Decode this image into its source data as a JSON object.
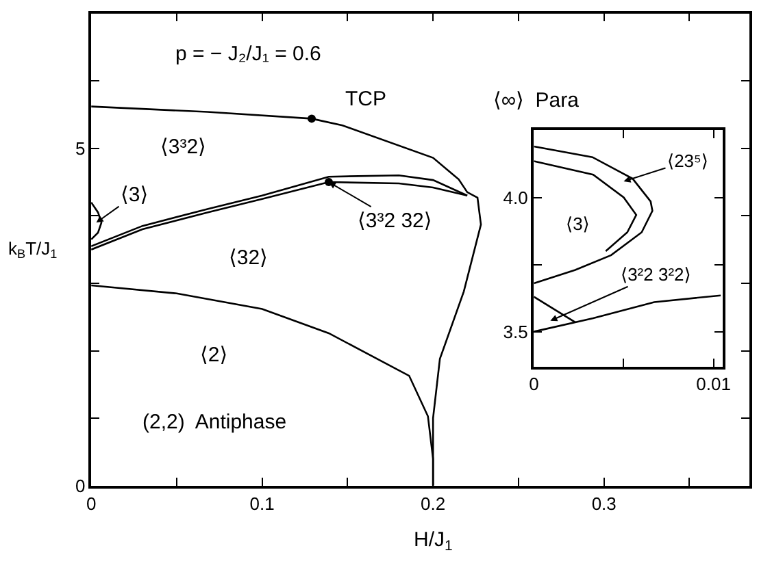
{
  "chart_data": [
    {
      "type": "line",
      "xlabel": "H/J$_{1}$",
      "ylabel": "k$_{B}$T/J$_{1}$",
      "xlim": [
        0,
        0.385
      ],
      "ylim": [
        0,
        7
      ],
      "xticks": [
        0,
        {
          "value": 0.05,
          "label": null
        },
        0.1,
        {
          "value": 0.15,
          "label": null
        },
        0.2,
        {
          "value": 0.25,
          "label": null
        },
        0.3,
        {
          "value": 0.35,
          "label": null
        }
      ],
      "yticks": [
        0,
        {
          "value": 1,
          "label": null
        },
        {
          "value": 2,
          "label": null
        },
        {
          "value": 3,
          "label": null
        },
        {
          "value": 4,
          "label": null
        },
        5,
        {
          "value": 6,
          "label": null
        }
      ],
      "grid": false,
      "marker": "none",
      "line_style": "solid",
      "series": [
        {
          "color": "#000000",
          "x": [
            0,
            0.068,
            0.129,
            0.147,
            0.2,
            0.215,
            0.22,
            0.226,
            0.228,
            0.218,
            0.204,
            0.2,
            0.2
          ],
          "values": [
            5.62,
            5.54,
            5.44,
            5.34,
            4.86,
            4.54,
            4.35,
            4.27,
            3.87,
            2.88,
            1.88,
            1.0,
            0
          ]
        },
        {
          "color": "#000000",
          "x": [
            0,
            0.03,
            0.068,
            0.1,
            0.139,
            0.18,
            0.2,
            0.22
          ],
          "values": [
            3.55,
            3.85,
            4.1,
            4.3,
            4.58,
            4.6,
            4.53,
            4.3
          ]
        },
        {
          "color": "#000000",
          "x": [
            0,
            0.03,
            0.068,
            0.1,
            0.139,
            0.18,
            0.2,
            0.22
          ],
          "values": [
            3.5,
            3.8,
            4.05,
            4.25,
            4.5,
            4.48,
            4.42,
            4.3
          ]
        },
        {
          "color": "#000000",
          "x": [
            0,
            0.05,
            0.1,
            0.139,
            0.186,
            0.197,
            0.2,
            0.2
          ],
          "values": [
            2.97,
            2.85,
            2.62,
            2.26,
            1.63,
            1.03,
            0.4,
            0
          ]
        },
        {
          "color": "#000000",
          "x": [
            0,
            0.004,
            0.006,
            0.004,
            0
          ],
          "values": [
            4.2,
            4.05,
            3.9,
            3.75,
            3.65
          ]
        },
        {
          "type": "scatter",
          "marker": "circle",
          "color": "#000000",
          "x": [
            0.129,
            0.139
          ],
          "values": [
            5.44,
            4.5
          ]
        }
      ],
      "annotations": [
        "p = − J₂/J₁ = 0.6",
        "⟨∞⟩  Para",
        {
          "text": "TCP",
          "x": 0.129,
          "y": 5.44
        },
        "⟨3³2⟩",
        {
          "text": "⟨3⟩",
          "x": 0.003,
          "y": 3.9
        },
        {
          "text": "⟨3³2 32⟩",
          "x": 0.139,
          "y": 4.5
        },
        "⟨32⟩",
        "⟨2⟩",
        "(2,2)  Antiphase"
      ]
    },
    {
      "type": "line",
      "xlim": [
        0,
        0.0105
      ],
      "ylim": [
        3.37,
        4.25
      ],
      "xticks": [
        0,
        {
          "value": 0.005,
          "label": null
        },
        0.01
      ],
      "yticks": [
        3.5,
        {
          "value": 3.75,
          "label": null
        },
        {
          "value": 4,
          "label": "4.0"
        }
      ],
      "grid": false,
      "marker": "none",
      "line_style": "solid",
      "series": [
        {
          "color": "#000000",
          "x": [
            0,
            0.00326,
            0.0055,
            0.0065,
            0.0066,
            0.006,
            0.0043,
            0.0023,
            0
          ],
          "values": [
            4.19,
            4.15,
            4.07,
            3.985,
            3.95,
            3.87,
            3.785,
            3.73,
            3.68
          ]
        },
        {
          "color": "#000000",
          "x": [
            0,
            0.0033,
            0.005,
            0.0057,
            0.0052,
            0.004
          ],
          "values": [
            4.135,
            4.085,
            4.0,
            3.935,
            3.87,
            3.8
          ]
        },
        {
          "color": "#000000",
          "x": [
            0,
            0.0023
          ],
          "values": [
            3.63,
            3.535
          ]
        },
        {
          "color": "#000000",
          "x": [
            0,
            0.0033,
            0.0067,
            0.0104
          ],
          "values": [
            3.5,
            3.55,
            3.61,
            3.635
          ]
        }
      ],
      "annotations": [
        "⟨3⟩",
        {
          "text": "⟨23⁵⟩",
          "x": 0.005,
          "y": 4.06
        },
        "⟨3²2 3²2⟩"
      ]
    }
  ]
}
